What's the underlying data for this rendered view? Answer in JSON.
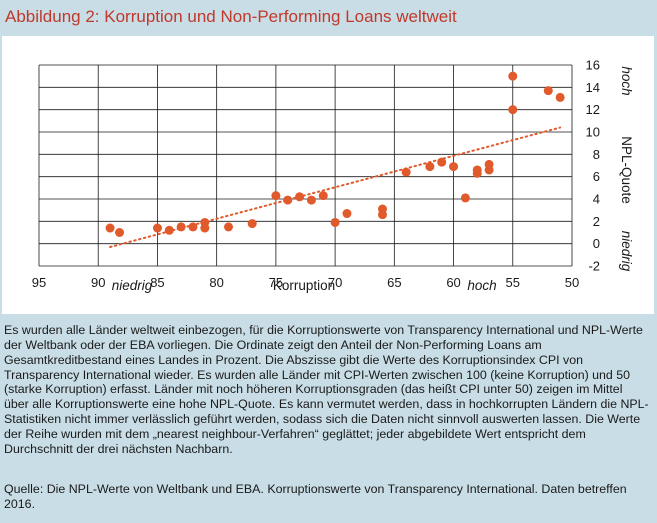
{
  "title": "Abbildung 2: Korruption und Non-Performing Loans weltweit",
  "description": "Es wurden alle Länder weltweit einbezogen, für die Korruptionswerte von Transparency International und NPL-Werte der Weltbank oder der EBA vorliegen. Die Ordinate zeigt den Anteil der Non-Performing Loans am Gesamtkreditbestand eines Landes in Prozent. Die Abszisse gibt die Werte des Korruptionsindex CPI von Transparency International wieder. Es wurden alle Länder mit CPI-Werten zwischen 100 (keine Korruption) und 50 (starke Korruption) erfasst. Länder mit noch höheren Korruptionsgraden (das heißt CPI unter 50) zeigen im Mittel über alle Korruptionswerte eine hohe NPL-Quote. Es kann vermutet werden, dass in hochkorrupten Ländern die NPL-Statistiken nicht immer verlässlich geführt werden, sodass sich die Daten nicht sinnvoll auswerten lassen. Die Werte der Reihe wurden mit dem „nearest neighbour-Verfahren“ geglättet; jeder abgebildete Wert entspricht dem Durchschnitt der drei nächsten Nachbarn.",
  "source": "Quelle: Die NPL-Werte von Weltbank und EBA. Korruptionswerte von Transparency International. Daten betreffen 2016.",
  "colors": {
    "accent": "#c0392b",
    "points": "#e05a2b",
    "trend": "#e05a2b",
    "background": "#c9dde6",
    "plot_background": "#ffffff",
    "grid": "#1a1a1a"
  },
  "chart_data": {
    "type": "scatter",
    "x_reversed": true,
    "xlim": [
      95,
      50
    ],
    "ylim": [
      -2,
      16
    ],
    "xticks": [
      95,
      90,
      85,
      80,
      75,
      70,
      65,
      60,
      55,
      50
    ],
    "yticks": [
      -2,
      0,
      2,
      4,
      6,
      8,
      10,
      12,
      14,
      16
    ],
    "xlabel": "Korruption",
    "xlabel_low": "niedrig",
    "xlabel_high": "hoch",
    "ylabel": "NPL-Quote",
    "ylabel_low": "niedrig",
    "ylabel_high": "hoch",
    "grid": true,
    "points": [
      {
        "x": 89,
        "y": 1.4
      },
      {
        "x": 88.2,
        "y": 1.0
      },
      {
        "x": 85,
        "y": 1.4
      },
      {
        "x": 84,
        "y": 1.2
      },
      {
        "x": 83,
        "y": 1.5
      },
      {
        "x": 82,
        "y": 1.5
      },
      {
        "x": 81,
        "y": 1.4
      },
      {
        "x": 81,
        "y": 1.9
      },
      {
        "x": 79,
        "y": 1.5
      },
      {
        "x": 77,
        "y": 1.8
      },
      {
        "x": 75,
        "y": 4.3
      },
      {
        "x": 74,
        "y": 3.9
      },
      {
        "x": 73,
        "y": 4.2
      },
      {
        "x": 72,
        "y": 3.9
      },
      {
        "x": 71,
        "y": 4.3
      },
      {
        "x": 70,
        "y": 1.9
      },
      {
        "x": 69,
        "y": 2.7
      },
      {
        "x": 66,
        "y": 2.6
      },
      {
        "x": 66,
        "y": 3.1
      },
      {
        "x": 64,
        "y": 6.4
      },
      {
        "x": 62,
        "y": 6.9
      },
      {
        "x": 61,
        "y": 7.3
      },
      {
        "x": 60,
        "y": 6.9
      },
      {
        "x": 59,
        "y": 4.1
      },
      {
        "x": 58,
        "y": 6.3
      },
      {
        "x": 58,
        "y": 6.6
      },
      {
        "x": 57,
        "y": 6.6
      },
      {
        "x": 57,
        "y": 7.1
      },
      {
        "x": 55,
        "y": 12.0
      },
      {
        "x": 55,
        "y": 15.0
      },
      {
        "x": 52,
        "y": 13.7
      },
      {
        "x": 51,
        "y": 13.1
      }
    ],
    "trendline": {
      "x": [
        89,
        51
      ],
      "y": [
        -0.3,
        10.4
      ]
    }
  }
}
